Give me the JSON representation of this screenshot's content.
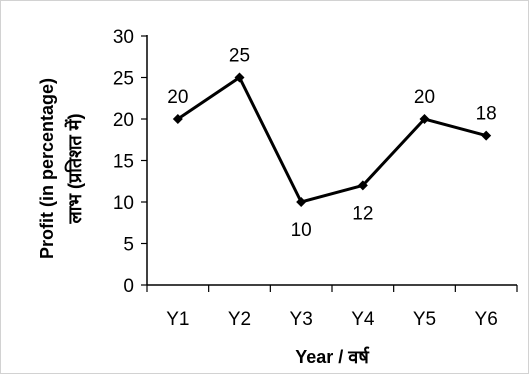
{
  "chart_data": {
    "type": "line",
    "title": "",
    "xlabel": "Year / वर्ष",
    "ylabel_lines": [
      "Profit (in percentage)",
      "लाभ (प्रतिशत में)"
    ],
    "categories": [
      "Y1",
      "Y2",
      "Y3",
      "Y4",
      "Y5",
      "Y6"
    ],
    "values": [
      20,
      25,
      10,
      12,
      20,
      18
    ],
    "data_labels": [
      "20",
      "25",
      "10",
      "12",
      "20",
      "18"
    ],
    "ylim": [
      0,
      30
    ],
    "yticks": [
      0,
      5,
      10,
      15,
      20,
      25,
      30
    ],
    "grid": false,
    "legend": "none",
    "line_color": "#000000",
    "marker": "diamond"
  }
}
